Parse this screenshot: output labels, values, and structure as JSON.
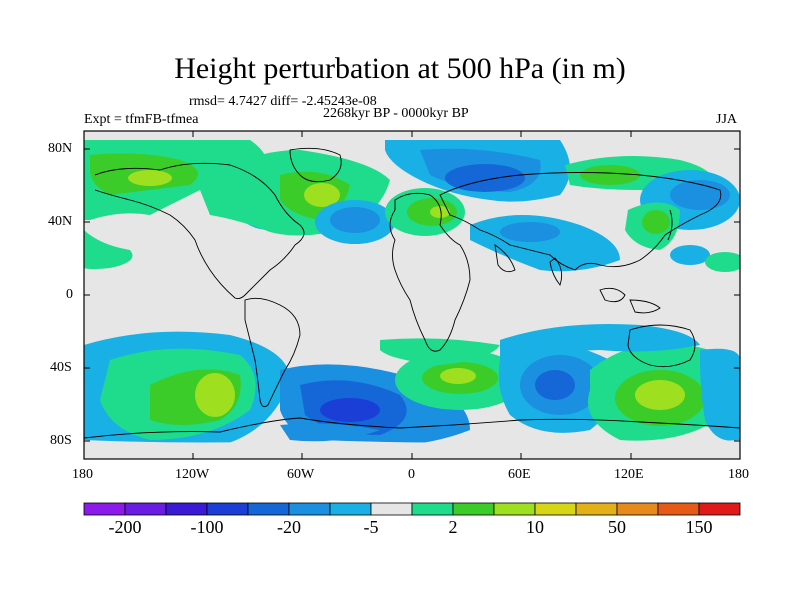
{
  "title": "Height perturbation at 500 hPa (in m)",
  "stats": "rmsd= 4.7427 diff= -2.45243e-08",
  "experiment": "Expt = tfmFB-tfmea",
  "period": "2268kyr BP - 0000kyr BP",
  "season": "JJA",
  "lat_labels": [
    "80N",
    "40N",
    "0",
    "40S",
    "80S"
  ],
  "lon_labels": [
    "180",
    "120W",
    "60W",
    "0",
    "60E",
    "120E",
    "180"
  ],
  "colorbar": {
    "colors": [
      "#8c1aea",
      "#6a1ce2",
      "#3b1ad6",
      "#1a3ed6",
      "#1567d8",
      "#1b8fe0",
      "#19b0e6",
      "#e6e6e6",
      "#1fdc8c",
      "#3ccc2a",
      "#9ee01f",
      "#d6d617",
      "#e3b117",
      "#e68a1b",
      "#e65a17",
      "#e01a1a"
    ],
    "labels": [
      "-200",
      "-100",
      "-20",
      "-5",
      "2",
      "10",
      "50",
      "150"
    ]
  },
  "legend_colors": {
    "neutral": "#e6e6e6",
    "neg_light": "#19b0e6",
    "neg_mid": "#1b8fe0",
    "neg_strong": "#1567d8",
    "pos_light": "#1fdc8c",
    "pos_mid": "#3ccc2a",
    "pos_strong": "#9ee01f"
  }
}
